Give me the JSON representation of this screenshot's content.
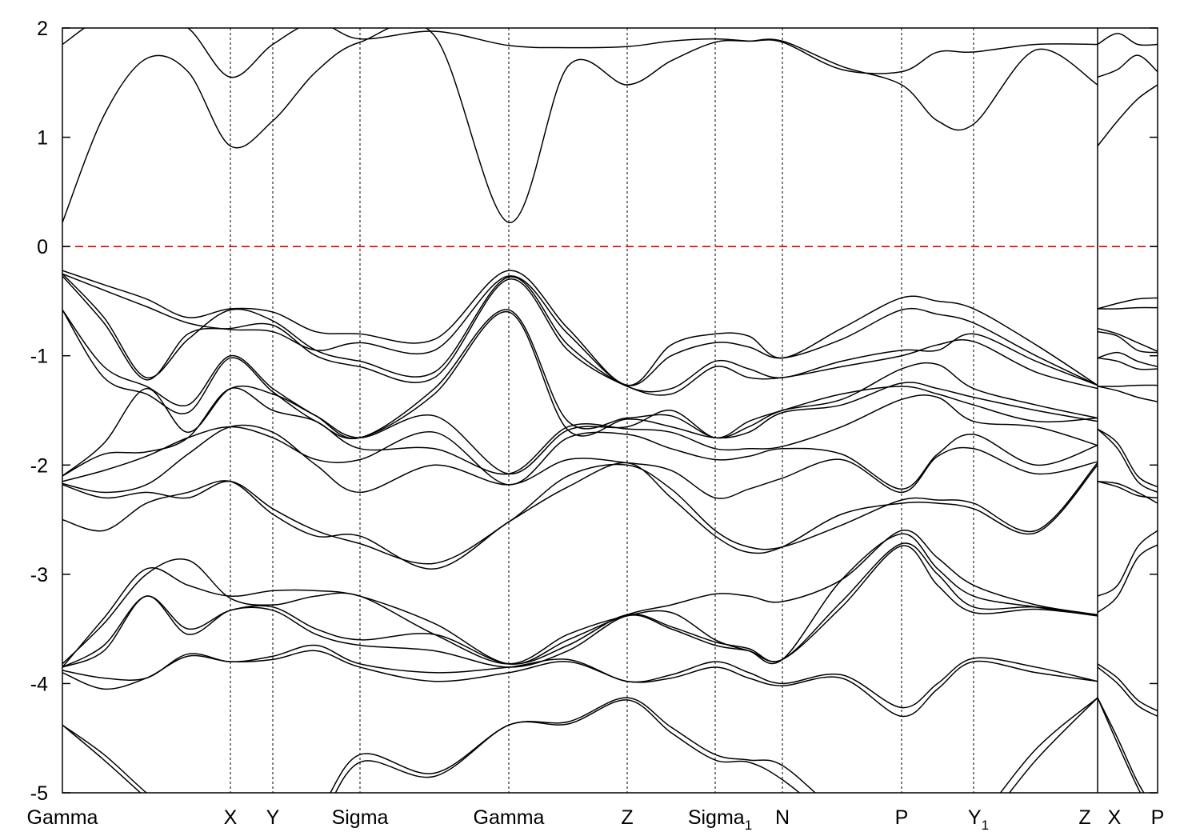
{
  "chart_data": {
    "type": "line",
    "title": "",
    "xlabel": "",
    "ylabel": "",
    "ylim": [
      -5,
      2
    ],
    "xlim": [
      0,
      13.69
    ],
    "yticks": [
      2,
      1,
      0,
      -1,
      -2,
      -3,
      -4,
      -5
    ],
    "ytick_labels": [
      "2",
      "1",
      "0",
      "-1",
      "-2",
      "-3",
      "-4",
      "-5"
    ],
    "fermi_level": 0,
    "colors": {
      "bands": "#000000",
      "fermi": "#e00000",
      "grid": "#000000"
    },
    "xticks": [
      {
        "k": 0,
        "text": "Gamma",
        "sub": ""
      },
      {
        "k": 2.1,
        "text": "X",
        "sub": ""
      },
      {
        "k": 2.63,
        "text": "Y",
        "sub": ""
      },
      {
        "k": 3.72,
        "text": "Sigma",
        "sub": ""
      },
      {
        "k": 5.58,
        "text": "Gamma",
        "sub": ""
      },
      {
        "k": 7.06,
        "text": "Z",
        "sub": ""
      },
      {
        "k": 8.16,
        "text": "Sigma",
        "sub": "1"
      },
      {
        "k": 9.0,
        "text": "N",
        "sub": ""
      },
      {
        "k": 10.49,
        "text": "P",
        "sub": ""
      },
      {
        "k": 11.39,
        "text": "Y",
        "sub": "1"
      },
      {
        "k": 12.94,
        "text": "Z",
        "sub": ""
      },
      {
        "k": 12.94,
        "text": "X",
        "sub": ""
      },
      {
        "k": 13.69,
        "text": "P",
        "sub": ""
      }
    ],
    "segments": [
      {
        "k": [
          0,
          0.52,
          1.05,
          1.57,
          2.1,
          2.63,
          3.17,
          3.72,
          4.65,
          5.58,
          6.32,
          7.06,
          7.61,
          8.16,
          8.58,
          9.0,
          9.74,
          10.49,
          10.94,
          11.39,
          12.17,
          12.94
        ],
        "bands": [
          [
            0.22,
            1.2,
            1.72,
            1.6,
            0.92,
            1.15,
            1.6,
            1.87,
            1.93,
            0.22,
            1.65,
            1.48,
            1.7,
            1.87,
            1.88,
            1.88,
            1.65,
            1.48,
            1.15,
            1.12,
            1.8,
            1.48
          ],
          [
            1.85,
            2.1,
            2.1,
            2.0,
            1.55,
            1.85,
            2.05,
            1.9,
            1.97,
            1.84,
            1.82,
            1.83,
            1.88,
            1.9,
            1.88,
            1.87,
            1.62,
            1.6,
            1.78,
            1.78,
            1.85,
            1.85
          ],
          [
            -0.22,
            -0.35,
            -0.48,
            -0.65,
            -0.57,
            -0.6,
            -0.78,
            -0.8,
            -0.85,
            -0.22,
            -0.75,
            -1.27,
            -0.9,
            -0.8,
            -0.82,
            -1.02,
            -0.75,
            -0.47,
            -0.5,
            -0.57,
            -0.9,
            -1.27
          ],
          [
            -0.25,
            -0.4,
            -0.55,
            -0.7,
            -0.76,
            -0.78,
            -0.95,
            -0.88,
            -0.95,
            -0.27,
            -0.8,
            -1.27,
            -1.0,
            -0.88,
            -0.92,
            -1.02,
            -0.85,
            -0.58,
            -0.62,
            -0.7,
            -1.0,
            -1.27
          ],
          [
            -0.25,
            -0.65,
            -1.2,
            -0.85,
            -0.58,
            -0.68,
            -0.95,
            -1.05,
            -1.15,
            -0.28,
            -0.9,
            -1.28,
            -1.3,
            -1.05,
            -1.12,
            -1.2,
            -1.05,
            -0.95,
            -0.95,
            -0.8,
            -1.05,
            -1.27
          ],
          [
            -0.27,
            -0.7,
            -1.22,
            -0.8,
            -0.75,
            -0.72,
            -1.0,
            -1.1,
            -1.2,
            -0.3,
            -0.95,
            -1.28,
            -1.35,
            -1.1,
            -1.2,
            -1.2,
            -1.1,
            -1.0,
            -0.9,
            -0.87,
            -1.15,
            -1.3
          ],
          [
            -0.58,
            -1.1,
            -1.28,
            -1.45,
            -1.0,
            -1.3,
            -1.55,
            -1.75,
            -1.3,
            -0.58,
            -1.6,
            -1.57,
            -1.55,
            -1.75,
            -1.65,
            -1.5,
            -1.4,
            -1.12,
            -1.08,
            -1.3,
            -1.45,
            -1.57
          ],
          [
            -0.58,
            -1.2,
            -1.35,
            -1.52,
            -1.02,
            -1.33,
            -1.6,
            -1.75,
            -1.35,
            -0.6,
            -1.68,
            -1.58,
            -1.65,
            -1.75,
            -1.7,
            -1.52,
            -1.45,
            -1.25,
            -1.3,
            -1.38,
            -1.5,
            -1.6
          ],
          [
            -2.1,
            -1.8,
            -1.3,
            -1.7,
            -1.3,
            -1.35,
            -1.55,
            -1.75,
            -1.55,
            -2.08,
            -1.68,
            -1.65,
            -1.5,
            -1.75,
            -1.6,
            -1.5,
            -1.35,
            -1.28,
            -1.35,
            -1.45,
            -1.6,
            -1.57
          ],
          [
            -2.1,
            -1.9,
            -1.88,
            -1.75,
            -1.3,
            -1.5,
            -1.6,
            -1.85,
            -1.85,
            -2.08,
            -1.65,
            -1.67,
            -1.7,
            -1.85,
            -1.85,
            -1.83,
            -1.65,
            -1.4,
            -1.38,
            -1.6,
            -1.65,
            -1.82
          ],
          [
            -2.15,
            -2.05,
            -1.92,
            -1.75,
            -1.65,
            -1.75,
            -1.95,
            -1.95,
            -1.7,
            -2.18,
            -1.75,
            -1.72,
            -1.85,
            -1.95,
            -1.92,
            -1.85,
            -1.9,
            -2.22,
            -1.9,
            -1.72,
            -2.0,
            -1.82
          ],
          [
            -2.17,
            -2.25,
            -2.18,
            -1.9,
            -1.65,
            -1.7,
            -2.0,
            -2.25,
            -2.0,
            -2.18,
            -1.95,
            -1.98,
            -2.05,
            -2.3,
            -2.22,
            -2.12,
            -1.95,
            -2.25,
            -1.92,
            -1.85,
            -2.08,
            -1.97
          ],
          [
            -2.18,
            -2.3,
            -2.25,
            -2.3,
            -2.15,
            -2.4,
            -2.6,
            -2.72,
            -2.9,
            -2.52,
            -2.1,
            -2.0,
            -2.22,
            -2.6,
            -2.75,
            -2.75,
            -2.55,
            -2.32,
            -2.32,
            -2.35,
            -2.6,
            -1.98
          ],
          [
            -2.5,
            -2.6,
            -2.35,
            -2.25,
            -2.15,
            -2.45,
            -2.65,
            -2.65,
            -2.95,
            -2.52,
            -2.2,
            -1.98,
            -2.3,
            -2.65,
            -2.8,
            -2.75,
            -2.45,
            -2.35,
            -2.35,
            -2.4,
            -2.62,
            -2.0
          ],
          [
            -3.85,
            -3.4,
            -2.95,
            -3.1,
            -3.2,
            -3.15,
            -3.15,
            -3.2,
            -3.45,
            -3.82,
            -3.6,
            -3.37,
            -3.28,
            -3.18,
            -3.2,
            -3.25,
            -3.05,
            -2.6,
            -2.85,
            -3.1,
            -3.28,
            -3.37
          ],
          [
            -3.82,
            -3.45,
            -3.0,
            -2.87,
            -3.22,
            -3.28,
            -3.2,
            -3.2,
            -3.55,
            -3.82,
            -3.55,
            -3.38,
            -3.35,
            -3.6,
            -3.7,
            -3.78,
            -3.05,
            -2.63,
            -2.95,
            -3.2,
            -3.3,
            -3.38
          ],
          [
            -3.85,
            -3.65,
            -3.2,
            -3.5,
            -3.33,
            -3.3,
            -3.5,
            -3.6,
            -3.55,
            -3.82,
            -3.65,
            -3.37,
            -3.48,
            -3.62,
            -3.68,
            -3.78,
            -3.25,
            -2.72,
            -3.0,
            -3.3,
            -3.3,
            -3.38
          ],
          [
            -3.85,
            -3.7,
            -3.2,
            -3.55,
            -3.33,
            -3.33,
            -3.55,
            -3.65,
            -3.7,
            -3.85,
            -3.7,
            -3.38,
            -3.5,
            -3.65,
            -3.7,
            -3.78,
            -3.3,
            -2.74,
            -3.1,
            -3.35,
            -3.32,
            -3.38
          ],
          [
            -3.88,
            -3.95,
            -3.95,
            -3.73,
            -3.8,
            -3.75,
            -3.65,
            -3.82,
            -3.9,
            -3.85,
            -3.78,
            -3.98,
            -3.92,
            -3.8,
            -3.9,
            -4.0,
            -3.92,
            -4.22,
            -4.0,
            -3.77,
            -3.85,
            -3.98
          ],
          [
            -3.9,
            -4.05,
            -3.95,
            -3.75,
            -3.8,
            -3.78,
            -3.7,
            -3.85,
            -3.98,
            -3.9,
            -3.8,
            -3.98,
            -3.95,
            -3.85,
            -3.95,
            -4.02,
            -3.95,
            -4.3,
            -4.05,
            -3.8,
            -3.9,
            -3.98
          ],
          [
            -4.38,
            -4.65,
            -5.0,
            -5.3,
            -5.5,
            -5.4,
            -5.2,
            -4.65,
            -4.82,
            -4.38,
            -4.35,
            -4.13,
            -4.4,
            -4.65,
            -4.7,
            -4.75,
            -5.2,
            -5.5,
            -5.5,
            -5.3,
            -4.6,
            -4.13
          ],
          [
            -4.38,
            -4.7,
            -5.05,
            -5.4,
            -5.6,
            -5.5,
            -5.3,
            -4.72,
            -4.85,
            -4.38,
            -4.37,
            -4.15,
            -4.45,
            -4.7,
            -4.72,
            -4.88,
            -5.3,
            -5.6,
            -5.6,
            -5.4,
            -4.7,
            -4.13
          ]
        ]
      },
      {
        "k": [
          12.94,
          13.19,
          13.44,
          13.69
        ],
        "bands": [
          [
            0.92,
            1.15,
            1.35,
            1.48
          ],
          [
            1.55,
            1.62,
            1.75,
            1.6
          ],
          [
            1.85,
            1.95,
            1.85,
            1.85
          ],
          [
            -0.57,
            -0.52,
            -0.48,
            -0.47
          ],
          [
            -0.57,
            -0.57,
            -0.56,
            -0.56
          ],
          [
            -0.78,
            -0.82,
            -0.95,
            -0.97
          ],
          [
            -0.75,
            -0.8,
            -0.88,
            -0.96
          ],
          [
            -1.02,
            -0.97,
            -1.05,
            -1.1
          ],
          [
            -1.02,
            -1.05,
            -1.12,
            -1.12
          ],
          [
            -1.28,
            -1.28,
            -1.27,
            -1.27
          ],
          [
            -1.28,
            -1.32,
            -1.38,
            -1.42
          ],
          [
            -1.67,
            -1.8,
            -2.1,
            -2.2
          ],
          [
            -1.67,
            -1.85,
            -2.15,
            -2.25
          ],
          [
            -2.15,
            -2.17,
            -2.25,
            -2.35
          ],
          [
            -2.15,
            -2.2,
            -2.28,
            -2.3
          ],
          [
            -3.2,
            -3.1,
            -2.75,
            -2.6
          ],
          [
            -3.35,
            -3.2,
            -2.85,
            -2.73
          ],
          [
            -3.82,
            -3.95,
            -4.15,
            -4.25
          ],
          [
            -3.85,
            -4.0,
            -4.2,
            -4.3
          ],
          [
            -4.13,
            -4.5,
            -4.9,
            -5.2
          ],
          [
            -4.13,
            -4.55,
            -4.95,
            -5.3
          ]
        ]
      }
    ]
  }
}
